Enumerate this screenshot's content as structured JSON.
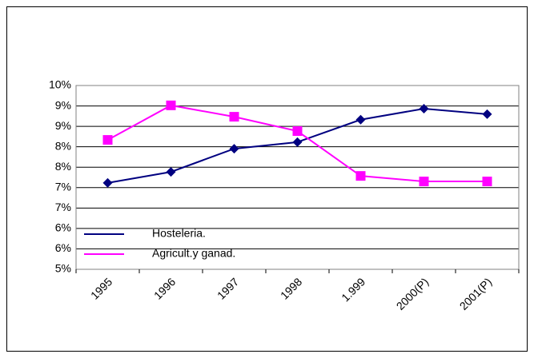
{
  "chart_data": {
    "type": "line",
    "categories": [
      "1995",
      "1996",
      "1997",
      "1998",
      "1.999",
      "2000(P)",
      "2001(P)"
    ],
    "series": [
      {
        "name": "Hosteleria.",
        "color": "#000080",
        "marker": "diamond",
        "values": [
          7.35,
          7.65,
          8.28,
          8.46,
          9.07,
          9.37,
          9.22
        ]
      },
      {
        "name": "Agricult.y ganad.",
        "color": "#ff00ff",
        "marker": "square",
        "values": [
          8.52,
          9.46,
          9.15,
          8.76,
          7.54,
          7.39,
          7.39
        ]
      }
    ],
    "ylim": [
      5,
      10
    ],
    "yticks": [
      {
        "value": 5,
        "label": "5%"
      },
      {
        "value": 5.556,
        "label": "6%"
      },
      {
        "value": 6.111,
        "label": "6%"
      },
      {
        "value": 6.667,
        "label": "7%"
      },
      {
        "value": 7.222,
        "label": "7%"
      },
      {
        "value": 7.778,
        "label": "8%"
      },
      {
        "value": 8.333,
        "label": "8%"
      },
      {
        "value": 8.889,
        "label": "9%"
      },
      {
        "value": 9.444,
        "label": "9%"
      },
      {
        "value": 10,
        "label": "10%"
      }
    ],
    "grid": true,
    "legend": "lower-left"
  }
}
